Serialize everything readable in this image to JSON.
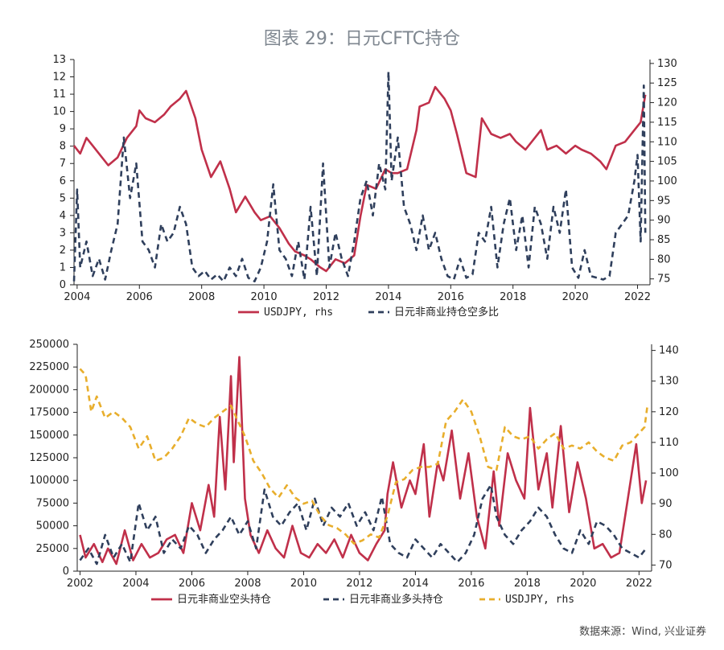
{
  "title": "图表 29：日元CFTC持仓",
  "source": "数据来源：Wind, 兴业证券",
  "colors": {
    "red": "#c0304a",
    "navy": "#2f3f5c",
    "gold": "#e8ae2c"
  },
  "chart_data": [
    {
      "type": "line",
      "title": "",
      "x_ticks": [
        "2004",
        "2006",
        "2008",
        "2010",
        "2012",
        "2014",
        "2016",
        "2018",
        "2020",
        "2022"
      ],
      "xlim": [
        2003.9,
        2022.4
      ],
      "ylim_left": [
        0,
        13
      ],
      "yticks_left": [
        "0",
        "1",
        "2",
        "3",
        "4",
        "5",
        "6",
        "7",
        "8",
        "9",
        "10",
        "11",
        "12",
        "13"
      ],
      "ylim_right": [
        73.5,
        131
      ],
      "yticks_right": [
        "75",
        "80",
        "85",
        "90",
        "95",
        "100",
        "105",
        "110",
        "115",
        "120",
        "125",
        "130"
      ],
      "legend": [
        {
          "name": "USDJPY, rhs",
          "style": "solid",
          "color": "#c0304a"
        },
        {
          "name": "日元非商业持仓空多比",
          "style": "dashed",
          "color": "#2f3f5c"
        }
      ],
      "series": [
        {
          "name": "USDJPY, rhs",
          "axis": "right",
          "color": "#c0304a",
          "style": "solid",
          "x": [
            2003.9,
            2004.1,
            2004.3,
            2004.5,
            2004.8,
            2005.0,
            2005.3,
            2005.6,
            2005.9,
            2006.0,
            2006.2,
            2006.5,
            2006.8,
            2007.0,
            2007.3,
            2007.5,
            2007.8,
            2008.0,
            2008.3,
            2008.6,
            2008.9,
            2009.1,
            2009.4,
            2009.7,
            2009.9,
            2010.2,
            2010.5,
            2010.8,
            2011.0,
            2011.3,
            2011.5,
            2011.8,
            2012.0,
            2012.3,
            2012.6,
            2012.9,
            2013.1,
            2013.3,
            2013.6,
            2013.9,
            2014.1,
            2014.3,
            2014.6,
            2014.9,
            2015.0,
            2015.3,
            2015.5,
            2015.8,
            2016.0,
            2016.2,
            2016.5,
            2016.8,
            2017.0,
            2017.3,
            2017.6,
            2017.9,
            2018.1,
            2018.4,
            2018.7,
            2018.9,
            2019.1,
            2019.4,
            2019.7,
            2020.0,
            2020.2,
            2020.5,
            2020.8,
            2021.0,
            2021.3,
            2021.6,
            2021.9,
            2022.1,
            2022.25
          ],
          "values": [
            109,
            107,
            111,
            109,
            106,
            104,
            106,
            111,
            114,
            118,
            116,
            115,
            117,
            119,
            121,
            123,
            116,
            108,
            101,
            105,
            98,
            92,
            96,
            92,
            90,
            91,
            88,
            84,
            82,
            81,
            80,
            78,
            77,
            80,
            79,
            81,
            91,
            99,
            98,
            103,
            102,
            102,
            103,
            113,
            119,
            120,
            124,
            121,
            118,
            112,
            102,
            101,
            116,
            112,
            111,
            112,
            110,
            108,
            111,
            113,
            108,
            109,
            107,
            109,
            108,
            107,
            105,
            103,
            109,
            110,
            113,
            115,
            122
          ]
        },
        {
          "name": "日元非商业持仓空多比",
          "axis": "left",
          "color": "#2f3f5c",
          "style": "dashed",
          "x": [
            2003.9,
            2004.0,
            2004.1,
            2004.3,
            2004.5,
            2004.7,
            2004.9,
            2005.1,
            2005.3,
            2005.5,
            2005.7,
            2005.9,
            2006.1,
            2006.3,
            2006.5,
            2006.7,
            2006.9,
            2007.1,
            2007.3,
            2007.5,
            2007.7,
            2007.9,
            2008.1,
            2008.3,
            2008.5,
            2008.7,
            2008.9,
            2009.1,
            2009.3,
            2009.5,
            2009.7,
            2009.9,
            2010.1,
            2010.3,
            2010.5,
            2010.7,
            2010.9,
            2011.1,
            2011.3,
            2011.5,
            2011.7,
            2011.9,
            2012.1,
            2012.3,
            2012.5,
            2012.7,
            2012.9,
            2013.1,
            2013.3,
            2013.5,
            2013.7,
            2013.9,
            2014.0,
            2014.1,
            2014.3,
            2014.5,
            2014.7,
            2014.9,
            2015.1,
            2015.3,
            2015.5,
            2015.7,
            2015.9,
            2016.1,
            2016.3,
            2016.5,
            2016.7,
            2016.9,
            2017.1,
            2017.3,
            2017.5,
            2017.7,
            2017.9,
            2018.1,
            2018.3,
            2018.5,
            2018.7,
            2018.9,
            2019.1,
            2019.3,
            2019.5,
            2019.7,
            2019.9,
            2020.1,
            2020.3,
            2020.5,
            2020.7,
            2020.9,
            2021.1,
            2021.3,
            2021.5,
            2021.7,
            2021.9,
            2022.0,
            2022.1,
            2022.2,
            2022.25
          ],
          "values": [
            0.2,
            5.5,
            1.0,
            2.5,
            0.5,
            1.5,
            0.3,
            2.0,
            3.5,
            8.5,
            5.0,
            7.0,
            2.5,
            2.0,
            1.0,
            3.5,
            2.5,
            3.0,
            4.5,
            3.5,
            1.0,
            0.5,
            0.8,
            0.3,
            0.6,
            0.2,
            1.0,
            0.5,
            1.5,
            0.4,
            0.2,
            1.0,
            2.5,
            5.8,
            2.0,
            1.5,
            0.5,
            2.5,
            0.3,
            4.5,
            0.5,
            7.0,
            1.0,
            3.0,
            1.5,
            0.5,
            2.5,
            5.0,
            6.0,
            4.0,
            7.0,
            5.5,
            12.3,
            6.0,
            8.5,
            4.5,
            3.5,
            2.0,
            4.0,
            2.0,
            3.0,
            1.5,
            0.5,
            0.3,
            1.5,
            0.4,
            0.6,
            3.0,
            2.5,
            4.5,
            1.0,
            3.5,
            5.0,
            2.0,
            4.0,
            1.0,
            4.5,
            3.5,
            1.5,
            4.5,
            3.0,
            5.5,
            1.0,
            0.4,
            2.0,
            0.5,
            0.4,
            0.3,
            0.5,
            3.0,
            3.5,
            4.0,
            6.0,
            7.5,
            2.5,
            11.5,
            3.0
          ]
        }
      ]
    },
    {
      "type": "line",
      "title": "",
      "x_ticks": [
        "2002",
        "2004",
        "2006",
        "2008",
        "2010",
        "2012",
        "2014",
        "2016",
        "2018",
        "2020",
        "2022"
      ],
      "xlim": [
        2001.9,
        2022.45
      ],
      "ylim_left": [
        0,
        250000
      ],
      "yticks_left": [
        "0",
        "25000",
        "50000",
        "75000",
        "100000",
        "125000",
        "150000",
        "175000",
        "200000",
        "225000",
        "250000"
      ],
      "ylim_right": [
        68,
        142
      ],
      "yticks_right": [
        "70",
        "80",
        "90",
        "100",
        "110",
        "120",
        "130",
        "140"
      ],
      "legend": [
        {
          "name": "日元非商业空头持仓",
          "style": "solid",
          "color": "#c0304a"
        },
        {
          "name": "日元非商业多头持仓",
          "style": "dashed",
          "color": "#2f3f5c"
        },
        {
          "name": "USDJPY, rhs",
          "style": "dashed",
          "color": "#e8ae2c"
        }
      ],
      "series": [
        {
          "name": "日元非商业空头持仓",
          "axis": "left",
          "color": "#c0304a",
          "style": "solid",
          "x": [
            2002.0,
            2002.2,
            2002.5,
            2002.8,
            2003.0,
            2003.3,
            2003.6,
            2003.9,
            2004.2,
            2004.5,
            2004.8,
            2005.1,
            2005.4,
            2005.7,
            2006.0,
            2006.3,
            2006.6,
            2006.8,
            2007.0,
            2007.2,
            2007.4,
            2007.5,
            2007.7,
            2007.9,
            2008.1,
            2008.4,
            2008.7,
            2009.0,
            2009.3,
            2009.6,
            2009.9,
            2010.2,
            2010.5,
            2010.8,
            2011.1,
            2011.4,
            2011.7,
            2012.0,
            2012.3,
            2012.6,
            2012.9,
            2013.0,
            2013.2,
            2013.5,
            2013.8,
            2014.0,
            2014.3,
            2014.5,
            2014.8,
            2015.0,
            2015.3,
            2015.6,
            2015.9,
            2016.2,
            2016.5,
            2016.8,
            2017.0,
            2017.3,
            2017.6,
            2017.9,
            2018.1,
            2018.4,
            2018.7,
            2018.9,
            2019.2,
            2019.5,
            2019.8,
            2020.1,
            2020.4,
            2020.7,
            2021.0,
            2021.3,
            2021.6,
            2021.9,
            2022.1,
            2022.25
          ],
          "values": [
            40000,
            15000,
            30000,
            10000,
            25000,
            8000,
            45000,
            12000,
            30000,
            15000,
            20000,
            35000,
            40000,
            20000,
            75000,
            45000,
            95000,
            60000,
            170000,
            90000,
            215000,
            120000,
            236000,
            80000,
            40000,
            20000,
            45000,
            25000,
            15000,
            50000,
            20000,
            15000,
            30000,
            20000,
            35000,
            15000,
            40000,
            20000,
            12000,
            30000,
            45000,
            85000,
            120000,
            70000,
            100000,
            85000,
            140000,
            60000,
            120000,
            100000,
            155000,
            80000,
            130000,
            60000,
            25000,
            110000,
            50000,
            130000,
            100000,
            80000,
            180000,
            90000,
            130000,
            70000,
            160000,
            65000,
            120000,
            80000,
            25000,
            30000,
            15000,
            20000,
            80000,
            140000,
            75000,
            100000
          ]
        },
        {
          "name": "日元非商业多头持仓",
          "axis": "left",
          "color": "#2f3f5c",
          "style": "dashed",
          "x": [
            2002.0,
            2002.3,
            2002.6,
            2002.9,
            2003.2,
            2003.5,
            2003.8,
            2004.1,
            2004.4,
            2004.7,
            2005.0,
            2005.3,
            2005.6,
            2005.9,
            2006.2,
            2006.5,
            2006.8,
            2007.1,
            2007.4,
            2007.7,
            2008.0,
            2008.3,
            2008.6,
            2008.9,
            2009.2,
            2009.5,
            2009.8,
            2010.1,
            2010.4,
            2010.7,
            2011.0,
            2011.3,
            2011.6,
            2011.9,
            2012.2,
            2012.5,
            2012.8,
            2013.1,
            2013.4,
            2013.7,
            2014.0,
            2014.3,
            2014.6,
            2014.9,
            2015.2,
            2015.5,
            2015.8,
            2016.1,
            2016.4,
            2016.7,
            2016.9,
            2017.2,
            2017.5,
            2017.8,
            2018.1,
            2018.4,
            2018.7,
            2019.0,
            2019.3,
            2019.6,
            2019.9,
            2020.2,
            2020.5,
            2020.8,
            2021.1,
            2021.4,
            2021.7,
            2022.0,
            2022.25
          ],
          "values": [
            12000,
            25000,
            8000,
            40000,
            15000,
            30000,
            10000,
            75000,
            45000,
            60000,
            20000,
            35000,
            25000,
            50000,
            40000,
            20000,
            35000,
            45000,
            60000,
            40000,
            55000,
            25000,
            90000,
            60000,
            50000,
            65000,
            75000,
            45000,
            80000,
            50000,
            70000,
            60000,
            75000,
            50000,
            65000,
            45000,
            82000,
            30000,
            20000,
            15000,
            35000,
            25000,
            15000,
            30000,
            20000,
            10000,
            20000,
            40000,
            80000,
            95000,
            60000,
            40000,
            30000,
            45000,
            55000,
            70000,
            60000,
            40000,
            25000,
            20000,
            45000,
            30000,
            55000,
            50000,
            40000,
            25000,
            20000,
            15000,
            25000
          ]
        },
        {
          "name": "USDJPY, rhs",
          "axis": "right",
          "color": "#e8ae2c",
          "style": "dashed",
          "x": [
            2002.0,
            2002.2,
            2002.4,
            2002.6,
            2002.9,
            2003.2,
            2003.5,
            2003.8,
            2004.1,
            2004.4,
            2004.7,
            2005.0,
            2005.3,
            2005.6,
            2005.9,
            2006.2,
            2006.5,
            2006.8,
            2007.1,
            2007.4,
            2007.6,
            2007.9,
            2008.2,
            2008.5,
            2008.8,
            2009.1,
            2009.4,
            2009.7,
            2010.0,
            2010.3,
            2010.6,
            2010.9,
            2011.2,
            2011.5,
            2011.8,
            2012.1,
            2012.4,
            2012.7,
            2013.0,
            2013.3,
            2013.6,
            2013.9,
            2014.2,
            2014.5,
            2014.8,
            2015.1,
            2015.4,
            2015.7,
            2016.0,
            2016.3,
            2016.6,
            2016.9,
            2017.2,
            2017.5,
            2017.8,
            2018.1,
            2018.4,
            2018.7,
            2019.0,
            2019.3,
            2019.6,
            2019.9,
            2020.2,
            2020.5,
            2020.8,
            2021.1,
            2021.4,
            2021.7,
            2022.0,
            2022.2,
            2022.3
          ],
          "values": [
            134,
            132,
            120,
            125,
            118,
            120,
            118,
            115,
            108,
            112,
            104,
            105,
            108,
            112,
            118,
            116,
            115,
            118,
            120,
            122,
            118,
            112,
            104,
            100,
            95,
            92,
            96,
            92,
            90,
            91,
            86,
            83,
            82,
            80,
            77,
            78,
            80,
            79,
            86,
            97,
            98,
            101,
            102,
            102,
            103,
            117,
            120,
            124,
            120,
            112,
            102,
            101,
            115,
            112,
            111,
            112,
            108,
            111,
            113,
            108,
            109,
            108,
            110,
            107,
            105,
            104,
            109,
            110,
            113,
            115,
            122
          ]
        }
      ]
    }
  ]
}
